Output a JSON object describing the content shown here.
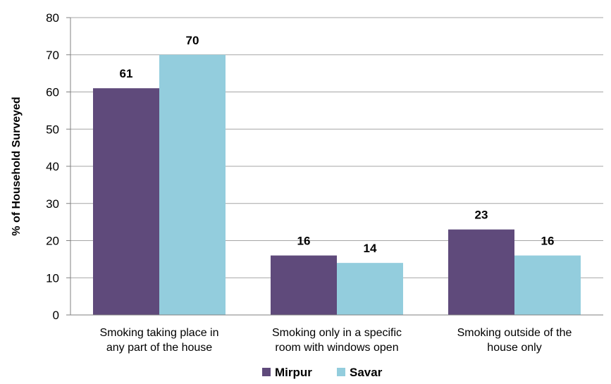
{
  "chart_data": {
    "type": "bar",
    "title": "",
    "xlabel": "",
    "ylabel": "%  of Household Surveyed",
    "ylim": [
      0,
      80
    ],
    "yticks": [
      0,
      10,
      20,
      30,
      40,
      50,
      60,
      70,
      80
    ],
    "grid": true,
    "legend_position": "bottom",
    "categories": [
      [
        "Smoking taking place in",
        "any part of the house"
      ],
      [
        "Smoking only in a specific",
        "room with windows open"
      ],
      [
        "Smoking outside of the",
        "house only"
      ]
    ],
    "series": [
      {
        "name": "Mirpur",
        "color": "#5f4a7b",
        "values": [
          61,
          16,
          23
        ]
      },
      {
        "name": "Savar",
        "color": "#93cddd",
        "values": [
          70,
          14,
          16
        ]
      }
    ]
  }
}
